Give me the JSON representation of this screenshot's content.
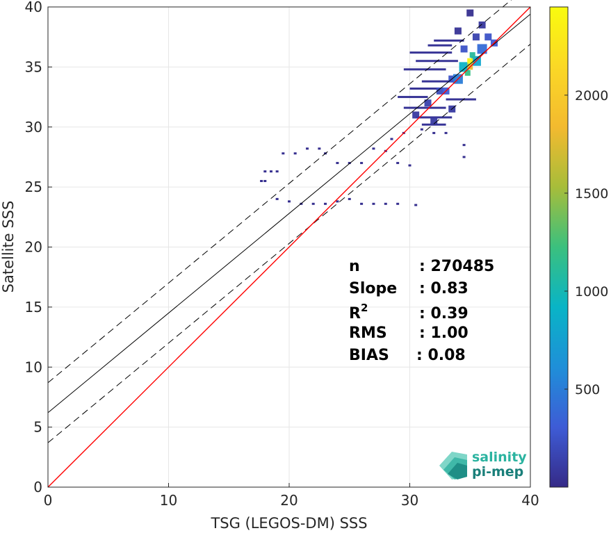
{
  "chart_data": {
    "type": "heatmap",
    "xlabel": "TSG (LEGOS-DM) SSS",
    "ylabel": "Satellite SSS",
    "xlim": [
      0,
      40
    ],
    "ylim": [
      0,
      40
    ],
    "x_ticks": [
      0,
      10,
      20,
      30,
      40
    ],
    "y_ticks": [
      0,
      5,
      10,
      15,
      20,
      25,
      30,
      35,
      40
    ],
    "grid": true,
    "colorbar": {
      "range": [
        0,
        2450
      ],
      "ticks": [
        500,
        1000,
        1500,
        2000
      ],
      "colormap": "parula",
      "colors": [
        "#352a87",
        "#3e5cd6",
        "#1f8fd8",
        "#09b4c6",
        "#3bc07e",
        "#a7bd3a",
        "#f3ba2f",
        "#fbd826",
        "#f9fb0e"
      ]
    },
    "identity_line": {
      "slope": 1,
      "intercept": 0,
      "color": "#ff0000"
    },
    "regression_line": {
      "slope": 0.83,
      "intercept": 6.2,
      "color": "#000000"
    },
    "envelope_offset": 2.5,
    "density_cells": [
      {
        "x": 35.0,
        "y": 35.5,
        "count": 2400
      },
      {
        "x": 35.0,
        "y": 35.0,
        "count": 1800
      },
      {
        "x": 34.8,
        "y": 34.5,
        "count": 1200
      },
      {
        "x": 35.2,
        "y": 36.0,
        "count": 1100
      },
      {
        "x": 34.5,
        "y": 35.0,
        "count": 900
      },
      {
        "x": 35.5,
        "y": 35.5,
        "count": 800
      },
      {
        "x": 34.0,
        "y": 34.0,
        "count": 500
      },
      {
        "x": 36.0,
        "y": 36.5,
        "count": 400
      },
      {
        "x": 33.0,
        "y": 33.0,
        "count": 300
      },
      {
        "x": 37.0,
        "y": 37.0,
        "count": 300
      },
      {
        "x": 33.5,
        "y": 34.0,
        "count": 250
      },
      {
        "x": 36.5,
        "y": 37.5,
        "count": 250
      },
      {
        "x": 34.5,
        "y": 36.5,
        "count": 250
      },
      {
        "x": 32.5,
        "y": 33.0,
        "count": 200
      },
      {
        "x": 31.5,
        "y": 32.0,
        "count": 150
      },
      {
        "x": 30.5,
        "y": 31.0,
        "count": 100
      },
      {
        "x": 32.0,
        "y": 30.5,
        "count": 100
      },
      {
        "x": 33.5,
        "y": 31.5,
        "count": 100
      },
      {
        "x": 35.5,
        "y": 37.5,
        "count": 150
      },
      {
        "x": 36.0,
        "y": 38.5,
        "count": 80
      },
      {
        "x": 34.0,
        "y": 38.0,
        "count": 60
      },
      {
        "x": 35.0,
        "y": 39.5,
        "count": 30
      }
    ],
    "sparse_points": [
      {
        "x": 18.0,
        "y": 26.3
      },
      {
        "x": 18.5,
        "y": 26.3
      },
      {
        "x": 19.0,
        "y": 26.3
      },
      {
        "x": 17.7,
        "y": 25.5
      },
      {
        "x": 18.0,
        "y": 25.5
      },
      {
        "x": 19.5,
        "y": 27.8
      },
      {
        "x": 20.5,
        "y": 27.8
      },
      {
        "x": 21.5,
        "y": 28.2
      },
      {
        "x": 22.5,
        "y": 28.2
      },
      {
        "x": 23.0,
        "y": 27.8
      },
      {
        "x": 19.0,
        "y": 24.0
      },
      {
        "x": 20.0,
        "y": 23.8
      },
      {
        "x": 21.0,
        "y": 23.6
      },
      {
        "x": 22.0,
        "y": 23.6
      },
      {
        "x": 23.0,
        "y": 23.6
      },
      {
        "x": 24.0,
        "y": 23.8
      },
      {
        "x": 25.0,
        "y": 24.0
      },
      {
        "x": 26.0,
        "y": 23.6
      },
      {
        "x": 27.0,
        "y": 23.6
      },
      {
        "x": 28.0,
        "y": 23.6
      },
      {
        "x": 29.0,
        "y": 23.6
      },
      {
        "x": 30.5,
        "y": 23.5
      },
      {
        "x": 24.0,
        "y": 27.0
      },
      {
        "x": 25.0,
        "y": 27.0
      },
      {
        "x": 26.0,
        "y": 27.0
      },
      {
        "x": 27.0,
        "y": 28.2
      },
      {
        "x": 28.0,
        "y": 28.0
      },
      {
        "x": 29.0,
        "y": 27.0
      },
      {
        "x": 30.0,
        "y": 26.8
      },
      {
        "x": 28.5,
        "y": 29.0
      },
      {
        "x": 29.5,
        "y": 29.5
      },
      {
        "x": 31.0,
        "y": 29.8
      },
      {
        "x": 32.0,
        "y": 29.5
      },
      {
        "x": 33.0,
        "y": 29.5
      },
      {
        "x": 34.5,
        "y": 27.5
      },
      {
        "x": 34.5,
        "y": 28.5
      }
    ],
    "horizontal_streaks": [
      {
        "x0": 30.0,
        "x1": 33.5,
        "y": 36.2
      },
      {
        "x0": 30.5,
        "y": 35.5,
        "x1": 34.0
      },
      {
        "x0": 29.5,
        "x1": 33.0,
        "y": 34.8
      },
      {
        "x0": 31.0,
        "x1": 34.0,
        "y": 33.8
      },
      {
        "x0": 30.0,
        "x1": 32.5,
        "y": 33.2
      },
      {
        "x0": 29.0,
        "x1": 31.5,
        "y": 32.5
      },
      {
        "x0": 29.5,
        "x1": 33.0,
        "y": 31.6
      },
      {
        "x0": 30.5,
        "x1": 33.5,
        "y": 30.8
      },
      {
        "x0": 31.0,
        "x1": 33.0,
        "y": 30.2
      },
      {
        "x0": 32.0,
        "x1": 34.5,
        "y": 37.2
      },
      {
        "x0": 31.5,
        "x1": 33.5,
        "y": 36.8
      },
      {
        "x0": 33.0,
        "x1": 35.5,
        "y": 32.3
      }
    ],
    "stats": [
      {
        "label": "n",
        "value": ": 270485"
      },
      {
        "label": "Slope",
        "value": ": 0.83"
      },
      {
        "label": "R",
        "sup": "2",
        "value": ": 0.39"
      },
      {
        "label": "RMS",
        "value": ": 1.00"
      },
      {
        "label": "BIAS",
        "value": ": 0.08"
      }
    ]
  },
  "logo": {
    "line1": "salinity",
    "line2": "pi-mep",
    "color1": "#2bb3a0",
    "color2": "#1a7f7a"
  }
}
